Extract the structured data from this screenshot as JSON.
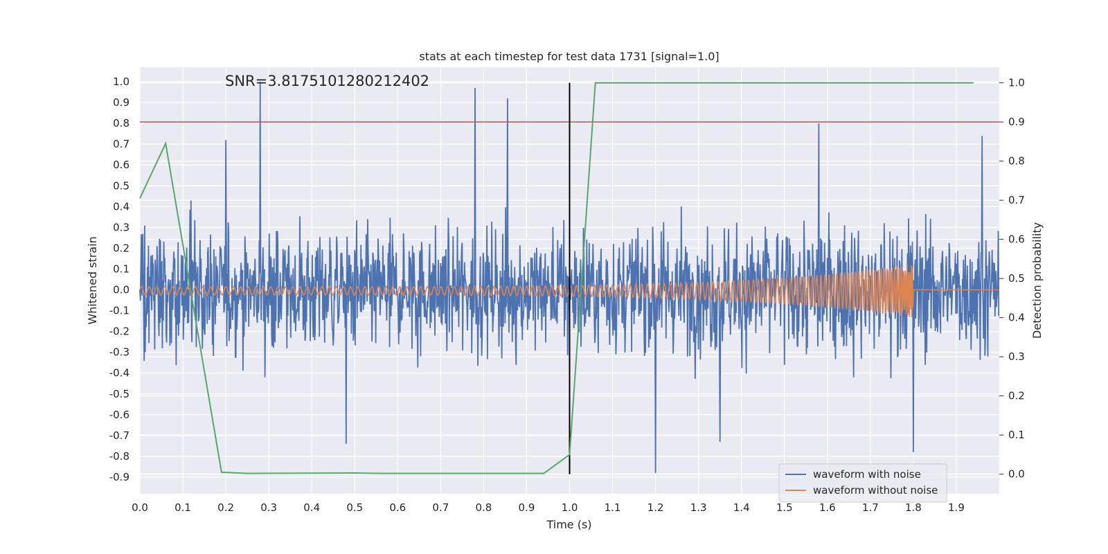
{
  "chart_data": {
    "type": "line",
    "title": "stats at each timestep for test data 1731 [signal=1.0]",
    "xlabel": "Time (s)",
    "ylabel": "Whitened strain",
    "y2label": "Detection probability",
    "xlim": [
      0.0,
      2.0
    ],
    "ylim": [
      -0.98,
      1.07
    ],
    "y2lim": [
      -0.05,
      1.04
    ],
    "xticks": [
      "0.0",
      "0.1",
      "0.2",
      "0.3",
      "0.4",
      "0.5",
      "0.6",
      "0.7",
      "0.8",
      "0.9",
      "1.0",
      "1.1",
      "1.2",
      "1.3",
      "1.4",
      "1.5",
      "1.6",
      "1.7",
      "1.8",
      "1.9"
    ],
    "yticks": [
      "1.0",
      "0.9",
      "0.8",
      "0.7",
      "0.6",
      "0.5",
      "0.4",
      "0.3",
      "0.2",
      "0.1",
      "0.0",
      "-0.1",
      "-0.2",
      "-0.3",
      "-0.4",
      "-0.5",
      "-0.6",
      "-0.7",
      "-0.8",
      "-0.9"
    ],
    "y2ticks": [
      "1.0",
      "0.9",
      "0.8",
      "0.7",
      "0.6",
      "0.5",
      "0.4",
      "0.3",
      "0.2",
      "0.1",
      "0.0"
    ],
    "annotation": "SNR=3.8175101280212402",
    "legend_position": "lower right",
    "series": [
      {
        "name": "waveform with noise",
        "color": "#4c72b0",
        "axis": "left",
        "description": "noisy whitened strain, roughly ±0.6 with peaks near 1.0 at t=0.28 s and -0.88 at t=1.2 s"
      },
      {
        "name": "waveform without noise",
        "color": "#dd8452",
        "axis": "left",
        "description": "chirp waveform, amplitude ~0.03 growing to ~0.13 near t=1.8 s, then zero"
      },
      {
        "name": "detection probability",
        "color": "#55a868",
        "axis": "right",
        "x": [
          0.0,
          0.06,
          0.19,
          0.25,
          0.5,
          0.56,
          0.94,
          1.0,
          1.06,
          1.94
        ],
        "values": [
          0.705,
          0.845,
          0.005,
          0.002,
          0.003,
          0.002,
          0.002,
          0.05,
          1.0,
          1.0
        ]
      }
    ],
    "reference_lines": [
      {
        "name": "threshold",
        "orientation": "horizontal",
        "axis": "right",
        "value": 0.9,
        "color": "#c44e52"
      },
      {
        "name": "signal-marker",
        "orientation": "vertical",
        "x": 1.0,
        "y_from": 0.0,
        "y_to": 1.0,
        "axis": "right",
        "color": "#000000"
      }
    ]
  }
}
